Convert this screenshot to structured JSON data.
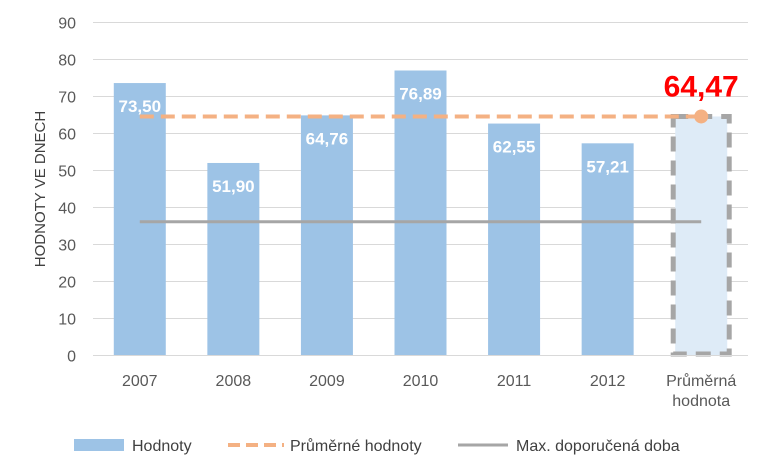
{
  "chart_data": {
    "type": "bar",
    "ylabel": "HODNOTY VE DNECH",
    "ylim": [
      0,
      90
    ],
    "yticks": [
      "0",
      "10",
      "20",
      "30",
      "40",
      "50",
      "60",
      "70",
      "80",
      "90"
    ],
    "categories": [
      "2007",
      "2008",
      "2009",
      "2010",
      "2011",
      "2012",
      "Průměrná hodnota"
    ],
    "series": [
      {
        "name": "Hodnoty",
        "type": "bar",
        "values": [
          73.5,
          51.9,
          64.76,
          76.89,
          62.55,
          57.21,
          64.47
        ],
        "labels": [
          "73,50",
          "51,90",
          "64,76",
          "76,89",
          "62,55",
          "57,21",
          "64,47"
        ],
        "color": "#9dc3e6",
        "highlight_last": true,
        "highlight_fill": "#deebf7",
        "highlight_border": "#a6a6a6"
      },
      {
        "name": "Průměrné hodnoty",
        "type": "line",
        "style": "dashed",
        "value": 64.47,
        "color": "#f4b183",
        "marker_color": "#f4b183"
      },
      {
        "name": "Max. doporučená doba",
        "type": "line",
        "style": "solid",
        "value": 36,
        "color": "#a6a6a6"
      }
    ],
    "highlight_label_color": "#ff0000",
    "grid": true,
    "legend_position": "bottom"
  }
}
